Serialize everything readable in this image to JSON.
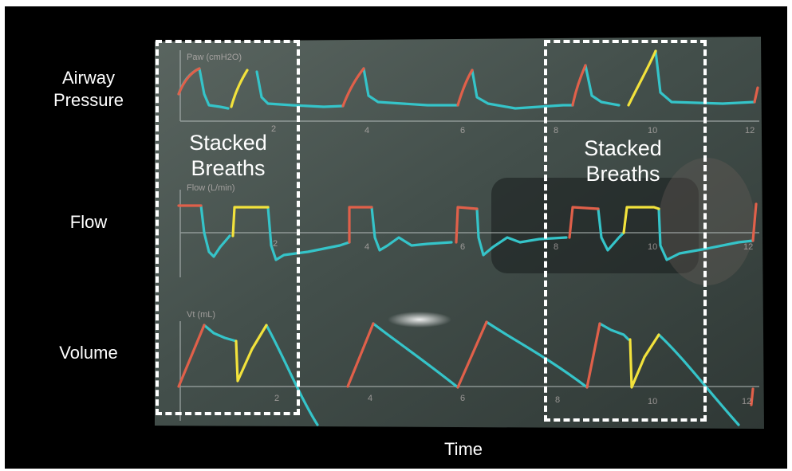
{
  "row_labels": {
    "airway_pressure_line1": "Airway",
    "airway_pressure_line2": "Pressure",
    "flow": "Flow",
    "volume": "Volume"
  },
  "x_axis_label": "Time",
  "stacked_labels": {
    "left_line1": "Stacked",
    "left_line2": "Breaths",
    "right_line1": "Stacked",
    "right_line2": "Breaths"
  },
  "monitor_channel_labels": {
    "pressure": "Paw (cmH2O)",
    "flow": "Flow (L/min)",
    "volume": "Vt (mL)"
  },
  "time_ticks": [
    "2",
    "4",
    "6",
    "8",
    "10",
    "12"
  ],
  "colors": {
    "background": "#000000",
    "screen": "#4a5650",
    "trace_cyan": "#35c4c9",
    "trace_red": "#e0604a",
    "trace_yellow": "#f2e23c",
    "dashed_box": "#ffffff"
  }
}
